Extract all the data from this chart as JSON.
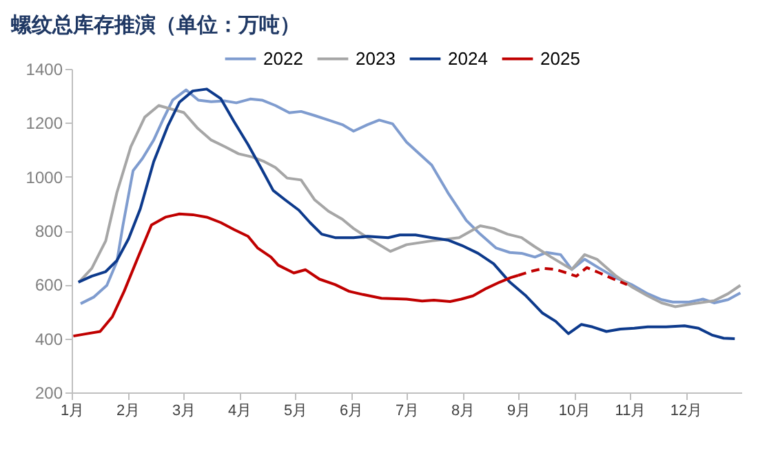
{
  "chart_data": {
    "type": "line",
    "title": "螺纹总库存推演（单位：万吨）",
    "xlim": [
      1,
      13
    ],
    "xticks": [
      {
        "value": 1,
        "label": "1月"
      },
      {
        "value": 2,
        "label": "2月"
      },
      {
        "value": 3,
        "label": "3月"
      },
      {
        "value": 4,
        "label": "4月"
      },
      {
        "value": 5,
        "label": "5月"
      },
      {
        "value": 6,
        "label": "6月"
      },
      {
        "value": 7,
        "label": "7月"
      },
      {
        "value": 8,
        "label": "8月"
      },
      {
        "value": 9,
        "label": "9月"
      },
      {
        "value": 10,
        "label": "10月"
      },
      {
        "value": 11,
        "label": "11月"
      },
      {
        "value": 12,
        "label": "12月"
      }
    ],
    "ylim": [
      200,
      1400
    ],
    "yticks": [
      200,
      400,
      600,
      800,
      1000,
      1200,
      1400
    ],
    "grid": false,
    "legend": "top",
    "marker": "none",
    "series": [
      {
        "name": "2022",
        "color": "#7f9ccf",
        "x": [
          1.16,
          1.4,
          1.63,
          1.81,
          1.92,
          2.1,
          2.27,
          2.47,
          2.64,
          2.81,
          3.05,
          3.27,
          3.5,
          3.75,
          3.95,
          4.2,
          4.41,
          4.65,
          4.9,
          5.11,
          5.35,
          5.6,
          5.85,
          6.05,
          6.3,
          6.51,
          6.75,
          7.0,
          7.45,
          7.74,
          8.07,
          8.32,
          8.6,
          8.85,
          9.06,
          9.3,
          9.51,
          9.76,
          9.96,
          10.19,
          10.46,
          10.74,
          11.03,
          11.32,
          11.57,
          11.77,
          12.06,
          12.31,
          12.51,
          12.76,
          12.98
        ],
        "values": [
          529,
          554,
          597,
          685,
          821,
          1022,
          1068,
          1136,
          1213,
          1284,
          1322,
          1284,
          1278,
          1281,
          1274,
          1288,
          1284,
          1264,
          1237,
          1242,
          1227,
          1210,
          1193,
          1169,
          1193,
          1210,
          1196,
          1128,
          1043,
          941,
          838,
          787,
          736,
          719,
          716,
          702,
          719,
          711,
          656,
          694,
          660,
          626,
          600,
          566,
          544,
          535,
          535,
          546,
          532,
          544,
          569
        ]
      },
      {
        "name": "2023",
        "color": "#a6a6a6",
        "x": [
          1.13,
          1.36,
          1.61,
          1.81,
          2.06,
          2.31,
          2.56,
          2.8,
          3.01,
          3.26,
          3.5,
          3.75,
          3.99,
          4.24,
          4.45,
          4.65,
          4.86,
          5.11,
          5.35,
          5.6,
          5.85,
          6.05,
          6.3,
          6.71,
          7.0,
          7.45,
          7.94,
          8.32,
          8.56,
          8.81,
          9.06,
          9.3,
          9.59,
          9.96,
          10.19,
          10.41,
          10.74,
          11.03,
          11.32,
          11.57,
          11.81,
          12.14,
          12.51,
          12.76,
          12.98
        ],
        "values": [
          609,
          660,
          762,
          941,
          1111,
          1221,
          1264,
          1250,
          1238,
          1179,
          1136,
          1111,
          1085,
          1073,
          1056,
          1034,
          995,
          988,
          915,
          872,
          842,
          808,
          774,
          723,
          748,
          762,
          774,
          818,
          808,
          787,
          774,
          740,
          702,
          656,
          711,
          694,
          634,
          592,
          558,
          532,
          518,
          529,
          540,
          566,
          597
        ]
      },
      {
        "name": "2024",
        "color": "#0d3a8c",
        "x": [
          1.12,
          1.36,
          1.61,
          1.81,
          2.02,
          2.23,
          2.47,
          2.72,
          2.93,
          3.17,
          3.42,
          3.67,
          3.91,
          4.16,
          4.41,
          4.61,
          4.82,
          5.07,
          5.27,
          5.48,
          5.72,
          6.05,
          6.3,
          6.67,
          6.88,
          7.16,
          7.45,
          7.74,
          7.99,
          8.28,
          8.56,
          8.85,
          9.14,
          9.43,
          9.67,
          9.9,
          10.13,
          10.33,
          10.58,
          10.83,
          11.08,
          11.32,
          11.65,
          11.98,
          12.23,
          12.47,
          12.68,
          12.88
        ],
        "values": [
          609,
          631,
          648,
          689,
          770,
          881,
          1056,
          1187,
          1276,
          1318,
          1325,
          1290,
          1204,
          1119,
          1026,
          949,
          915,
          876,
          830,
          787,
          774,
          774,
          779,
          774,
          784,
          784,
          774,
          765,
          745,
          716,
          677,
          609,
          558,
          495,
          464,
          418,
          452,
          443,
          426,
          435,
          438,
          443,
          443,
          447,
          438,
          413,
          401,
          399
        ]
      },
      {
        "name": "2025",
        "color": "#c00000",
        "x": [
          1.03,
          1.28,
          1.51,
          1.73,
          1.94,
          2.19,
          2.43,
          2.68,
          2.93,
          3.17,
          3.42,
          3.67,
          3.91,
          4.16,
          4.33,
          4.57,
          4.7,
          4.98,
          5.19,
          5.44,
          5.72,
          5.97,
          6.22,
          6.55,
          7.0,
          7.28,
          7.49,
          7.78,
          7.98,
          8.19,
          8.43,
          8.67,
          8.87,
          9.0
        ],
        "values": [
          409,
          418,
          426,
          481,
          575,
          702,
          821,
          850,
          862,
          859,
          850,
          830,
          804,
          779,
          736,
          702,
          672,
          643,
          655,
          620,
          600,
          575,
          563,
          549,
          546,
          539,
          542,
          537,
          546,
          558,
          586,
          609,
          626,
          634
        ]
      },
      {
        "color": "#c00000",
        "line_style": "dashed",
        "x": [
          9.0,
          9.21,
          9.45,
          9.67,
          9.87,
          10.04,
          10.23,
          10.46,
          10.71,
          10.95
        ],
        "values": [
          634,
          648,
          660,
          656,
          643,
          631,
          663,
          643,
          620,
          600
        ]
      }
    ]
  }
}
